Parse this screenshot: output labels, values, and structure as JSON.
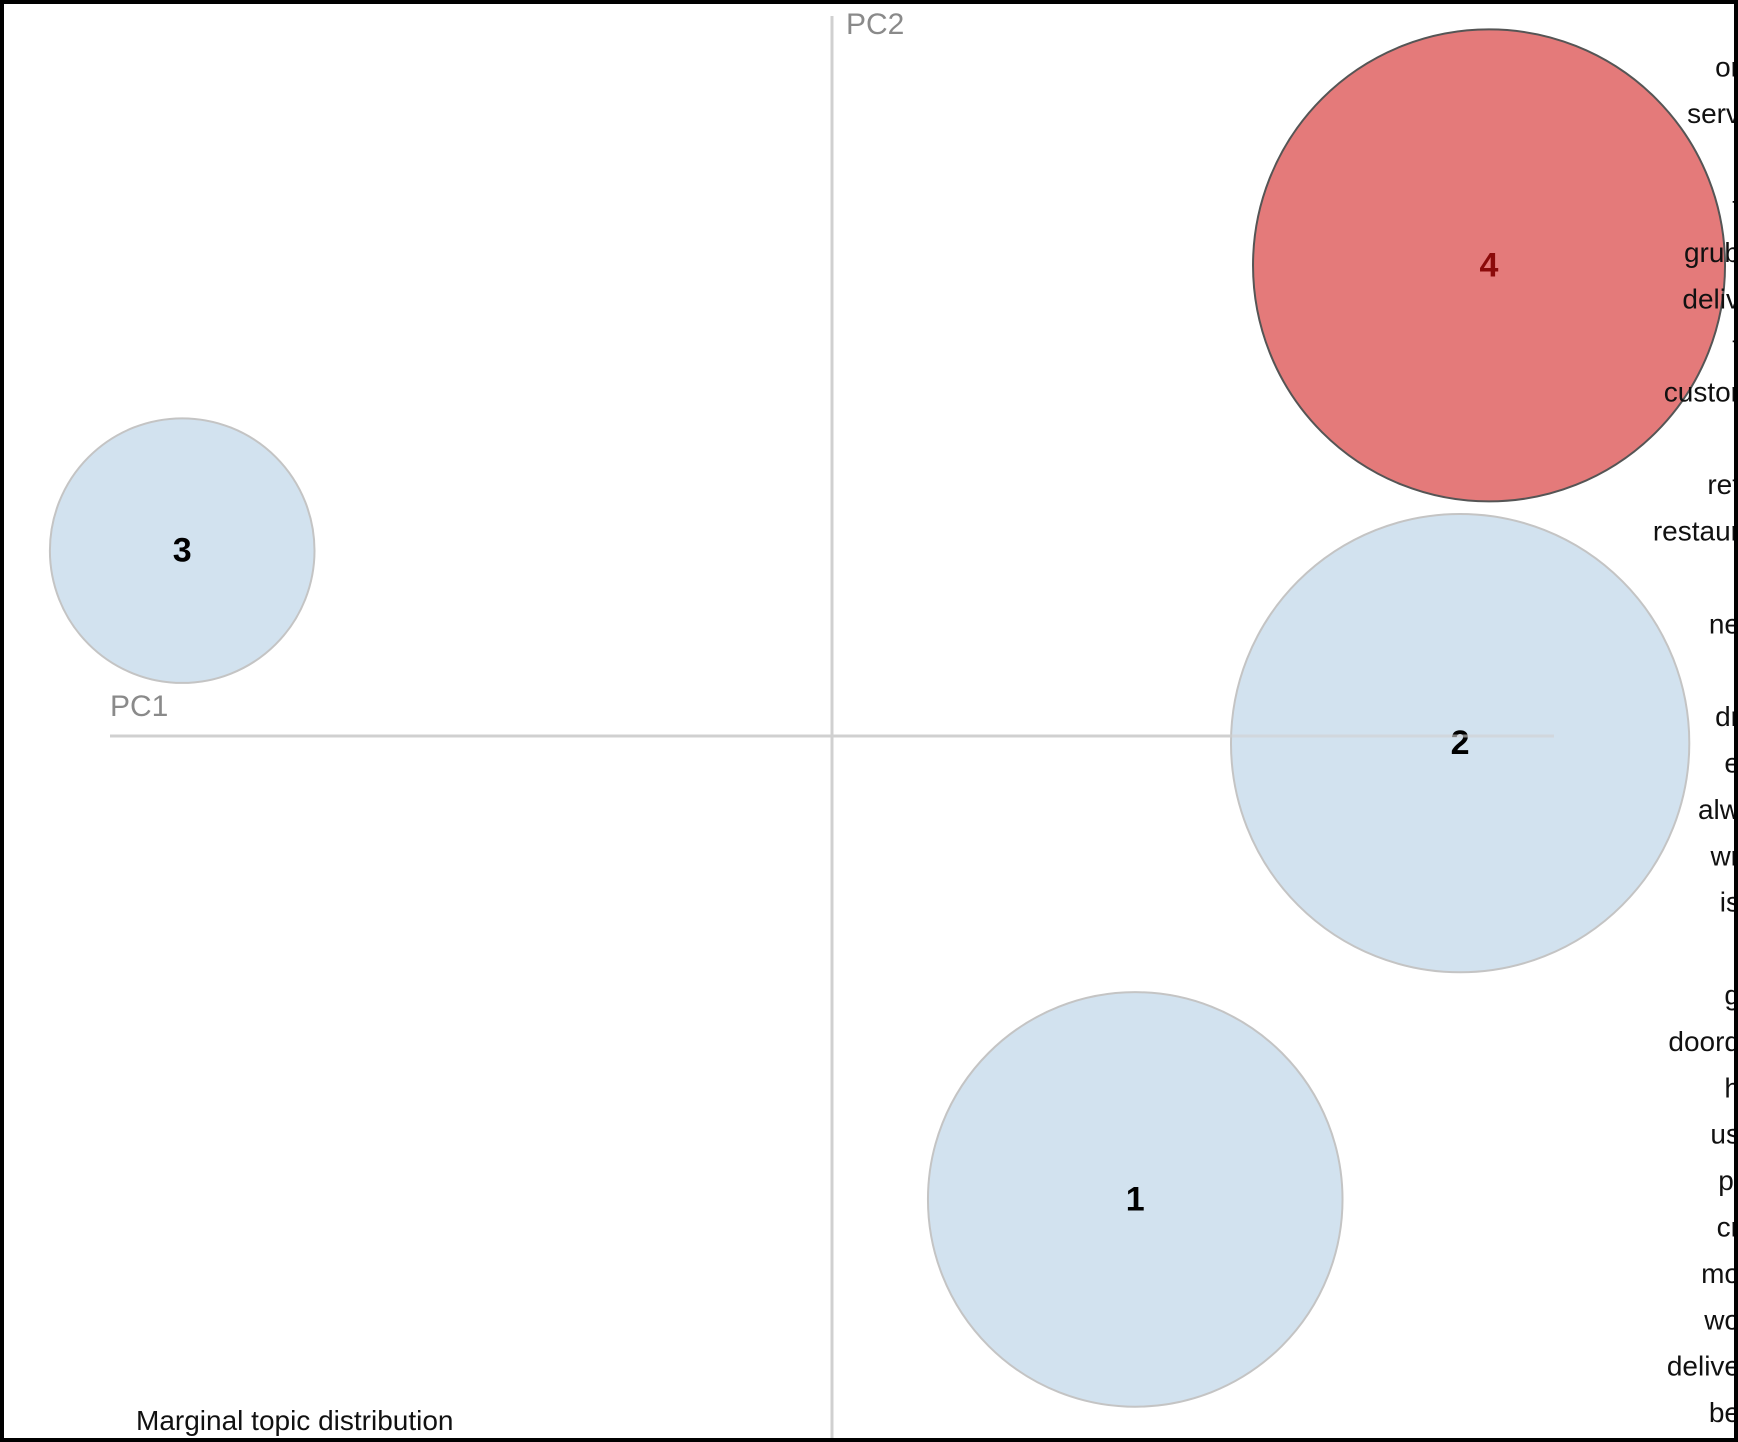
{
  "chart_data": {
    "type": "scatter",
    "subtype": "bubble",
    "xlabel": "PC1",
    "ylabel": "PC2",
    "xlim": [
      -1,
      1
    ],
    "ylim": [
      -1,
      1
    ],
    "grid": false,
    "legend_title": "Marginal topic distribution",
    "selected_topic": 4,
    "colors": {
      "default_fill": "#d2e2ef",
      "default_stroke": "#c4c4c4",
      "selected_fill": "#e47a7a",
      "selected_stroke": "#555555",
      "selected_label": "#8b0a0a",
      "default_label": "#000000"
    },
    "topics": [
      {
        "label": "1",
        "x": 0.42,
        "y": -0.65,
        "size": 0.27
      },
      {
        "label": "2",
        "x": 0.87,
        "y": -0.01,
        "size": 0.33
      },
      {
        "label": "3",
        "x": -0.9,
        "y": 0.26,
        "size": 0.11
      },
      {
        "label": "4",
        "x": 0.91,
        "y": 0.66,
        "size": 0.35
      }
    ],
    "terms": [
      "or",
      "serv",
      "",
      "f",
      "grub",
      "deliv",
      "t",
      "custor",
      "",
      "ref",
      "restaur",
      "",
      "ne",
      "",
      "dr",
      "e",
      "alw",
      "wr",
      "is",
      "i",
      "g",
      "doord",
      "h",
      "us",
      "pl",
      "cr",
      "mo",
      "wo",
      "delive",
      "be"
    ]
  }
}
